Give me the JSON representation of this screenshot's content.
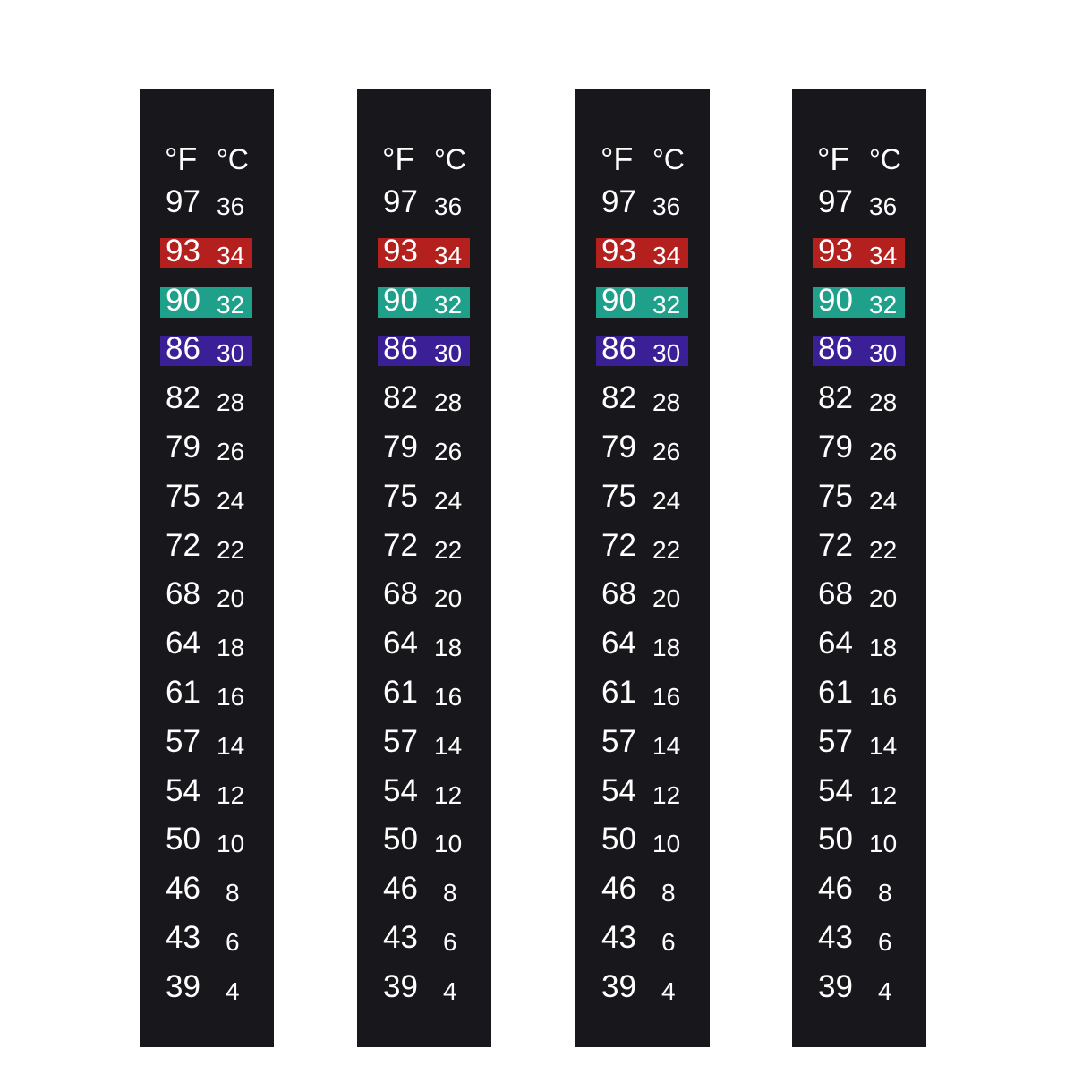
{
  "strip_count": 4,
  "header": {
    "fahrenheit": "°F",
    "celsius": "°C"
  },
  "colors": {
    "background": "#18171c",
    "text": "#ffffff",
    "red": "#b3201e",
    "teal": "#1fa08a",
    "purple": "#3a1f96"
  },
  "rows": [
    {
      "f": "97",
      "c": "36",
      "highlight": ""
    },
    {
      "f": "93",
      "c": "34",
      "highlight": "#b3201e"
    },
    {
      "f": "90",
      "c": "32",
      "highlight": "#1fa08a"
    },
    {
      "f": "86",
      "c": "30",
      "highlight": "#3a1f96"
    },
    {
      "f": "82",
      "c": "28",
      "highlight": ""
    },
    {
      "f": "79",
      "c": "26",
      "highlight": ""
    },
    {
      "f": "75",
      "c": "24",
      "highlight": ""
    },
    {
      "f": "72",
      "c": "22",
      "highlight": ""
    },
    {
      "f": "68",
      "c": "20",
      "highlight": ""
    },
    {
      "f": "64",
      "c": "18",
      "highlight": ""
    },
    {
      "f": "61",
      "c": "16",
      "highlight": ""
    },
    {
      "f": "57",
      "c": "14",
      "highlight": ""
    },
    {
      "f": "54",
      "c": "12",
      "highlight": ""
    },
    {
      "f": "50",
      "c": "10",
      "highlight": ""
    },
    {
      "f": "46",
      "c": "8",
      "highlight": ""
    },
    {
      "f": "43",
      "c": "6",
      "highlight": ""
    },
    {
      "f": "39",
      "c": "4",
      "highlight": ""
    }
  ]
}
